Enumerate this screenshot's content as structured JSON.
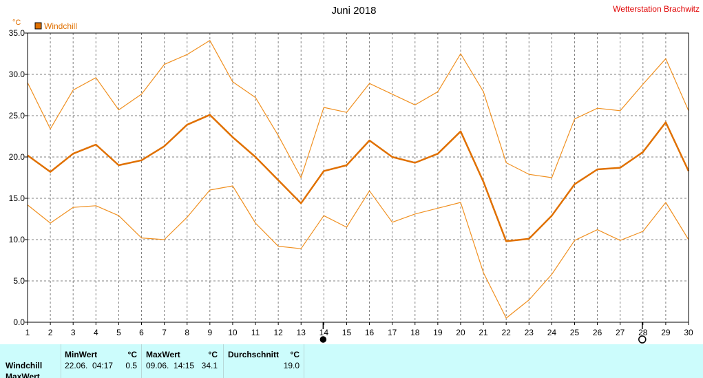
{
  "header": {
    "title": "Juni 2018",
    "station": "Wetterstation Brachwitz",
    "unit": "°C"
  },
  "legend": [
    {
      "label": "Windchill",
      "color": "#e07000"
    }
  ],
  "chart_data": {
    "type": "line",
    "title": "Juni 2018",
    "xlabel": "",
    "ylabel": "°C",
    "x": [
      1,
      2,
      3,
      4,
      5,
      6,
      7,
      8,
      9,
      10,
      11,
      12,
      13,
      14,
      15,
      16,
      17,
      18,
      19,
      20,
      21,
      22,
      23,
      24,
      25,
      26,
      27,
      28,
      29,
      30
    ],
    "ylim": [
      0,
      35
    ],
    "yticks": [
      "0.0",
      "5.0",
      "10.0",
      "15.0",
      "20.0",
      "25.0",
      "30.0",
      "35.0"
    ],
    "grid": true,
    "legend_position": "top-left",
    "moon_phases": [
      {
        "day": 14,
        "phase": "new"
      },
      {
        "day": 28,
        "phase": "full"
      }
    ],
    "series": [
      {
        "name": "Windchill",
        "role": "max",
        "color": "#f09020",
        "values": [
          29.0,
          23.4,
          28.1,
          29.6,
          25.7,
          27.6,
          31.2,
          32.4,
          34.1,
          29.1,
          27.2,
          22.6,
          17.5,
          26.0,
          25.4,
          28.9,
          27.6,
          26.3,
          27.9,
          32.5,
          27.9,
          19.3,
          17.9,
          17.5,
          24.6,
          25.9,
          25.6,
          28.8,
          31.9,
          25.6
        ]
      },
      {
        "name": "Windchill",
        "role": "mean",
        "color": "#e07000",
        "values": [
          20.2,
          18.2,
          20.4,
          21.5,
          19.0,
          19.6,
          21.3,
          23.9,
          25.1,
          22.4,
          20.0,
          17.2,
          14.4,
          18.3,
          19.0,
          22.0,
          20.0,
          19.3,
          20.4,
          23.1,
          17.0,
          9.8,
          10.1,
          12.9,
          16.7,
          18.5,
          18.7,
          20.6,
          24.2,
          18.3
        ]
      },
      {
        "name": "Windchill",
        "role": "min",
        "color": "#f09020",
        "values": [
          14.2,
          12.0,
          13.9,
          14.1,
          12.9,
          10.2,
          10.0,
          12.7,
          16.0,
          16.5,
          12.0,
          9.2,
          8.9,
          12.9,
          11.5,
          15.9,
          12.1,
          13.1,
          13.8,
          14.5,
          6.0,
          0.5,
          2.7,
          5.8,
          9.9,
          11.2,
          9.9,
          11.0,
          14.5,
          10.0
        ]
      }
    ]
  },
  "stats": {
    "row_label": "Windchill",
    "row_label_2": "MaxWert",
    "min": {
      "header": "MinWert",
      "unit": "°C",
      "date": "22.06.  04:17",
      "value": "0.5"
    },
    "max": {
      "header": "MaxWert",
      "unit": "°C",
      "date": "09.06.  14:15",
      "value": "34.1"
    },
    "avg": {
      "header": "Durchschnitt",
      "unit": "°C",
      "value": "19.0"
    }
  }
}
